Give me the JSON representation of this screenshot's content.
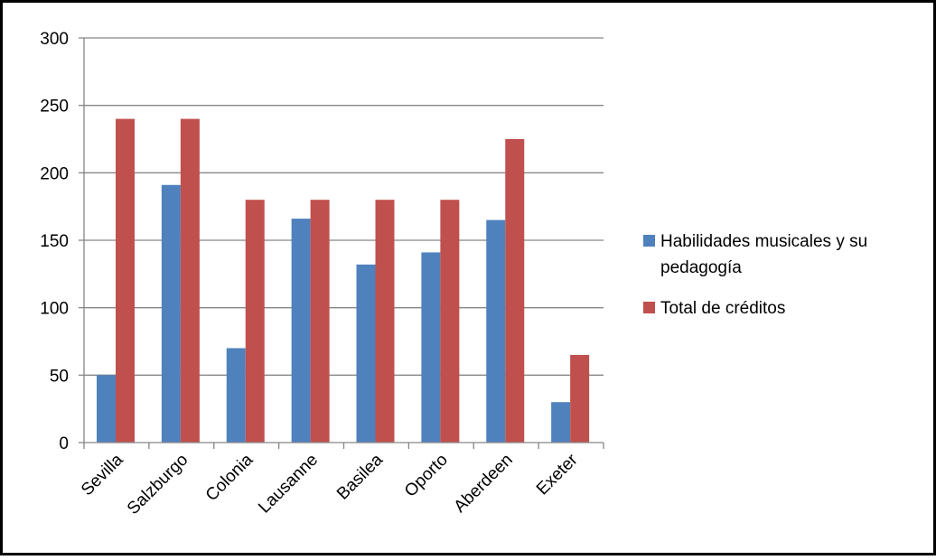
{
  "chart_data": {
    "type": "bar",
    "title": "",
    "xlabel": "",
    "ylabel": "",
    "categories": [
      "Sevilla",
      "Salzburgo",
      "Colonia",
      "Lausanne",
      "Basilea",
      "Oporto",
      "Aberdeen",
      "Exeter"
    ],
    "series": [
      {
        "name": "Habilidades musicales y su pedagogía",
        "name_lines": [
          "Habilidades musicales y su",
          "pedagogía"
        ],
        "color": "#4F81BD",
        "values": [
          50,
          191,
          70,
          166,
          132,
          141,
          165,
          30
        ]
      },
      {
        "name": "Total de créditos",
        "name_lines": [
          "Total de créditos"
        ],
        "color": "#C0504D",
        "values": [
          240,
          240,
          180,
          180,
          180,
          180,
          225,
          65
        ]
      }
    ],
    "ylim": [
      0,
      300
    ],
    "yticks": [
      0,
      50,
      100,
      150,
      200,
      250,
      300
    ],
    "grid": true,
    "legend_position": "right"
  }
}
